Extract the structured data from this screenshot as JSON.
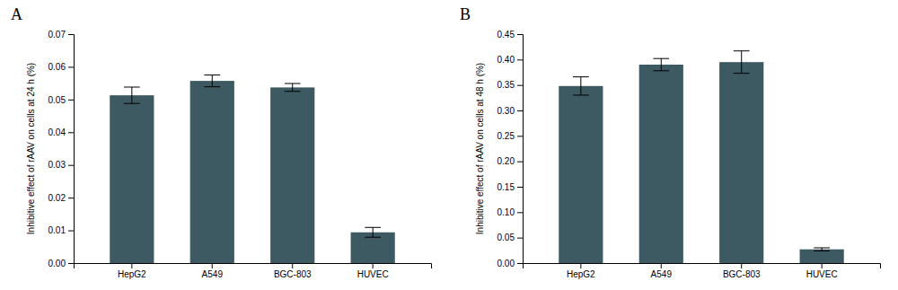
{
  "chart_data": [
    {
      "type": "bar",
      "title": "A",
      "categories": [
        "HepG2",
        "A549",
        "BGC-803",
        "HUVEC"
      ],
      "values": [
        0.0513,
        0.0557,
        0.0537,
        0.0094
      ],
      "errors": [
        0.0025,
        0.0018,
        0.0012,
        0.0015
      ],
      "ylabel": "Inhibitive effect of rAAV on cells at 24 h (%)",
      "color": "#3d5a63",
      "ylim": [
        0,
        0.07
      ],
      "yticks": [
        {
          "value": 0.0,
          "label": "0.00"
        },
        0.01,
        0.02,
        0.03,
        0.04,
        0.05,
        0.06,
        0.07
      ],
      "grid": false
    },
    {
      "type": "bar",
      "title": "B",
      "categories": [
        "HepG2",
        "A549",
        "BGC-803",
        "HUVEC"
      ],
      "values": [
        0.348,
        0.39,
        0.395,
        0.027
      ],
      "errors": [
        0.018,
        0.012,
        0.022,
        0.003
      ],
      "ylabel": "Inhibitive effect of rAAV on cells at 48 h (%)",
      "color": "#3d5a63",
      "ylim": [
        0,
        0.45
      ],
      "yticks": [
        {
          "value": 0.0,
          "label": "0.00"
        },
        0.05,
        {
          "value": 0.1,
          "label": "0.10"
        },
        0.15,
        {
          "value": 0.2,
          "label": "0.20"
        },
        0.25,
        {
          "value": 0.3,
          "label": "0.30"
        },
        0.35,
        {
          "value": 0.4,
          "label": "0.40"
        },
        0.45
      ],
      "grid": false
    }
  ]
}
